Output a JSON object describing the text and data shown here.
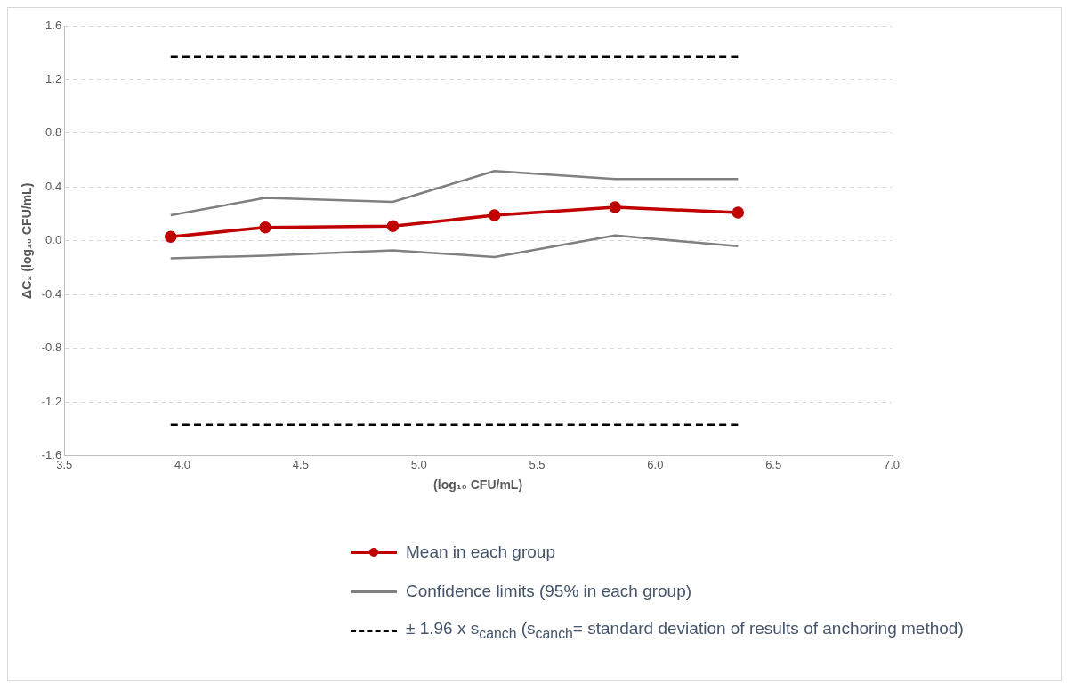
{
  "chart_data": {
    "type": "line",
    "xlabel": "(log₁₀ CFU/mL)",
    "ylabel": "ΔC₂ (log₁₀ CFU/mL)",
    "xlim": [
      3.5,
      7.0
    ],
    "xticks": [
      3.5,
      {
        "value": 4,
        "label": "4.0"
      },
      4.5,
      {
        "value": 5,
        "label": "5.0"
      },
      5.5,
      {
        "value": 6,
        "label": "6.0"
      },
      6.5,
      {
        "value": 7,
        "label": "7.0"
      }
    ],
    "ylim": [
      -1.6,
      1.6
    ],
    "yticks": [
      -1.6,
      -1.2,
      -0.8,
      -0.4,
      {
        "value": 0,
        "label": "0.0"
      },
      0.4,
      0.8,
      1.2,
      1.6
    ],
    "grid": "y",
    "legend": "bottom",
    "series": [
      {
        "name": "Mean in each group",
        "color": "#c00000",
        "marker": "circle",
        "line_style": "solid",
        "x": [
          3.95,
          4.35,
          4.89,
          5.32,
          5.83,
          6.35
        ],
        "values": [
          0.03,
          0.1,
          0.11,
          0.19,
          0.25,
          0.21
        ]
      },
      {
        "name": "Confidence limits (95% in each group)",
        "color": "#808080",
        "marker": "none",
        "line_style": "solid",
        "x": [
          3.95,
          4.35,
          4.89,
          5.32,
          5.83,
          6.35
        ],
        "values": [
          0.19,
          0.32,
          0.29,
          0.52,
          0.46,
          0.46
        ]
      },
      {
        "color": "#808080",
        "marker": "none",
        "line_style": "solid",
        "x": [
          3.95,
          4.35,
          4.89,
          5.32,
          5.83,
          6.35
        ],
        "values": [
          -0.13,
          -0.11,
          -0.07,
          -0.12,
          0.04,
          -0.04
        ]
      },
      {
        "name": "± 1.96 x s$_{canch}$ (s$_{canch}$= standard deviation of results of anchoring method)",
        "color": "#000000",
        "marker": "none",
        "line_style": "dashed",
        "x": [
          3.95,
          6.35
        ],
        "values": [
          1.37,
          1.37
        ]
      },
      {
        "color": "#000000",
        "marker": "none",
        "line_style": "dashed",
        "x": [
          3.95,
          6.35
        ],
        "values": [
          -1.37,
          -1.37
        ]
      }
    ]
  }
}
